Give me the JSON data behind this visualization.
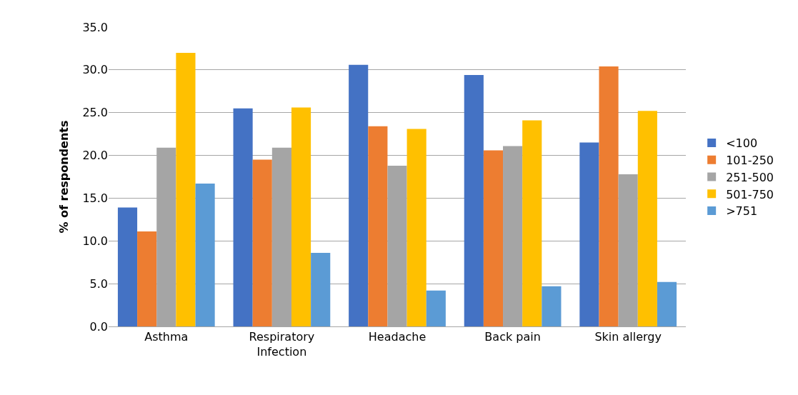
{
  "chart_data": {
    "type": "bar",
    "ylabel": "% of respondents",
    "categories": [
      "Asthma",
      "Respiratory Infection",
      "Headache",
      "Back pain",
      "Skin allergy"
    ],
    "series": [
      {
        "name": "<100",
        "color": "#4472c4",
        "values": [
          13.9,
          25.5,
          30.6,
          29.4,
          21.5
        ]
      },
      {
        "name": "101-250",
        "color": "#ed7d31",
        "values": [
          11.1,
          19.5,
          23.4,
          20.6,
          30.4
        ]
      },
      {
        "name": "251-500",
        "color": "#a5a5a5",
        "values": [
          20.9,
          20.9,
          18.8,
          21.1,
          17.8
        ]
      },
      {
        "name": "501-750",
        "color": "#ffc000",
        "values": [
          32.0,
          25.6,
          23.1,
          24.1,
          25.2
        ]
      },
      {
        "name": ">751",
        "color": "#5b9bd5",
        "values": [
          16.7,
          8.6,
          4.2,
          4.7,
          5.2
        ]
      }
    ],
    "ylim": [
      0,
      35
    ],
    "yticks": [
      {
        "value": 0,
        "label": "0.0"
      },
      {
        "value": 5,
        "label": "5.0"
      },
      {
        "value": 10,
        "label": "10.0"
      },
      {
        "value": 15,
        "label": "15.0"
      },
      {
        "value": 20,
        "label": "20.0"
      },
      {
        "value": 25,
        "label": "25.0"
      },
      {
        "value": 30,
        "label": "30.0"
      },
      {
        "value": 35,
        "label": "35.0"
      }
    ],
    "grid": "y",
    "legend": "right"
  }
}
